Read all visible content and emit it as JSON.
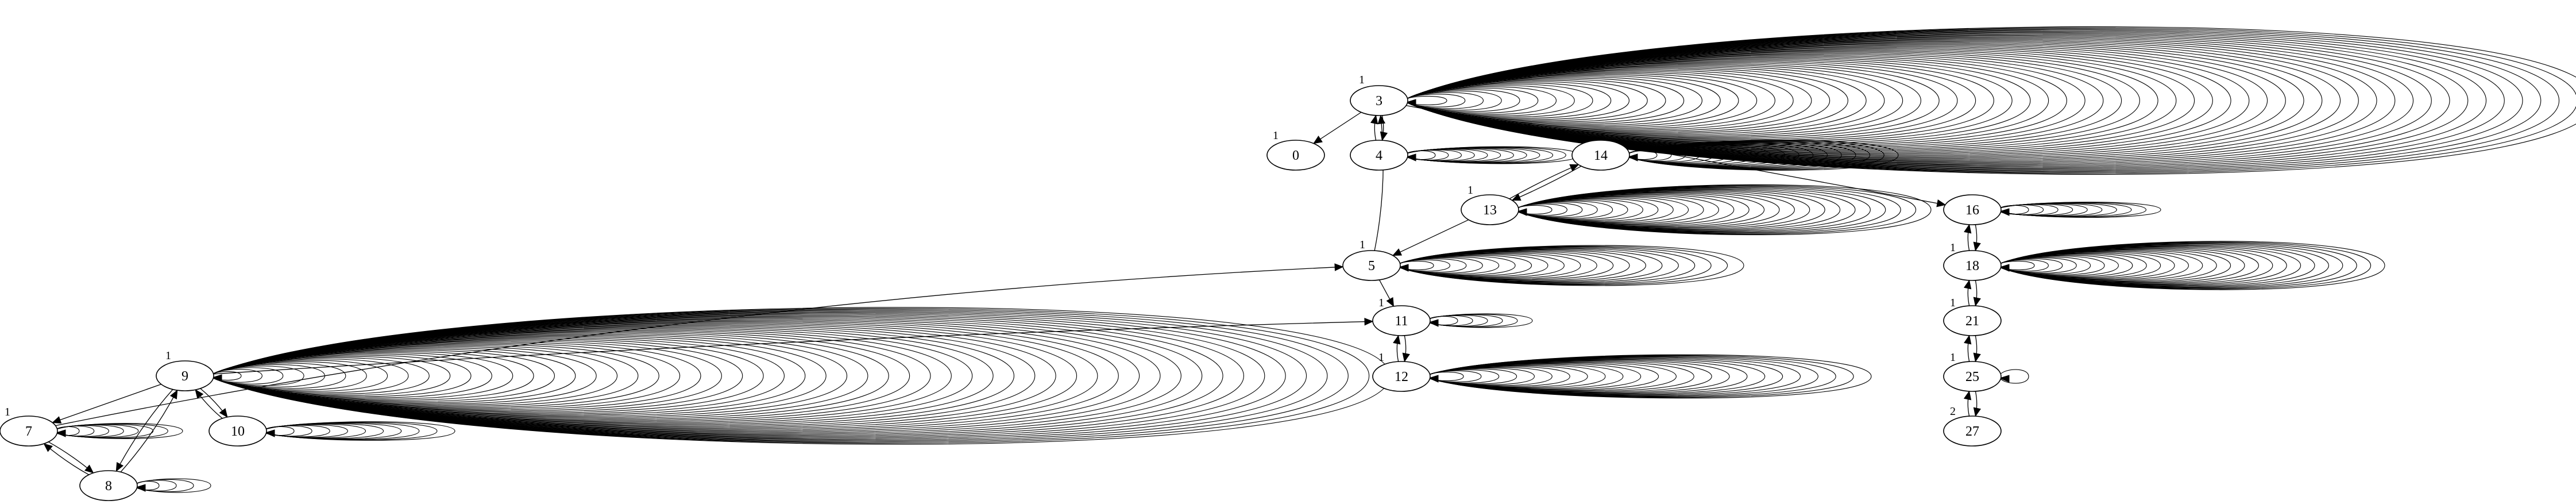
{
  "graph": {
    "nodes": [
      {
        "id": "0",
        "label": "0"
      },
      {
        "id": "3",
        "label": "3"
      },
      {
        "id": "4",
        "label": "4"
      },
      {
        "id": "5",
        "label": "5"
      },
      {
        "id": "7",
        "label": "7"
      },
      {
        "id": "8",
        "label": "8"
      },
      {
        "id": "9",
        "label": "9"
      },
      {
        "id": "10",
        "label": "10"
      },
      {
        "id": "11",
        "label": "11"
      },
      {
        "id": "12",
        "label": "12"
      },
      {
        "id": "13",
        "label": "13"
      },
      {
        "id": "14",
        "label": "14"
      },
      {
        "id": "16",
        "label": "16"
      },
      {
        "id": "18",
        "label": "18"
      },
      {
        "id": "21",
        "label": "21"
      },
      {
        "id": "25",
        "label": "25"
      },
      {
        "id": "27",
        "label": "27"
      }
    ],
    "edge_labels": [
      {
        "id": "l3",
        "text": "1"
      },
      {
        "id": "l0",
        "text": "1"
      },
      {
        "id": "l13",
        "text": "1"
      },
      {
        "id": "l5",
        "text": "1"
      },
      {
        "id": "l11",
        "text": "1"
      },
      {
        "id": "l12",
        "text": "1"
      },
      {
        "id": "l9",
        "text": "1"
      },
      {
        "id": "l7",
        "text": "1"
      },
      {
        "id": "l18",
        "text": "1"
      },
      {
        "id": "l21",
        "text": "1"
      },
      {
        "id": "l25",
        "text": "1"
      },
      {
        "id": "l27",
        "text": "2"
      }
    ]
  }
}
